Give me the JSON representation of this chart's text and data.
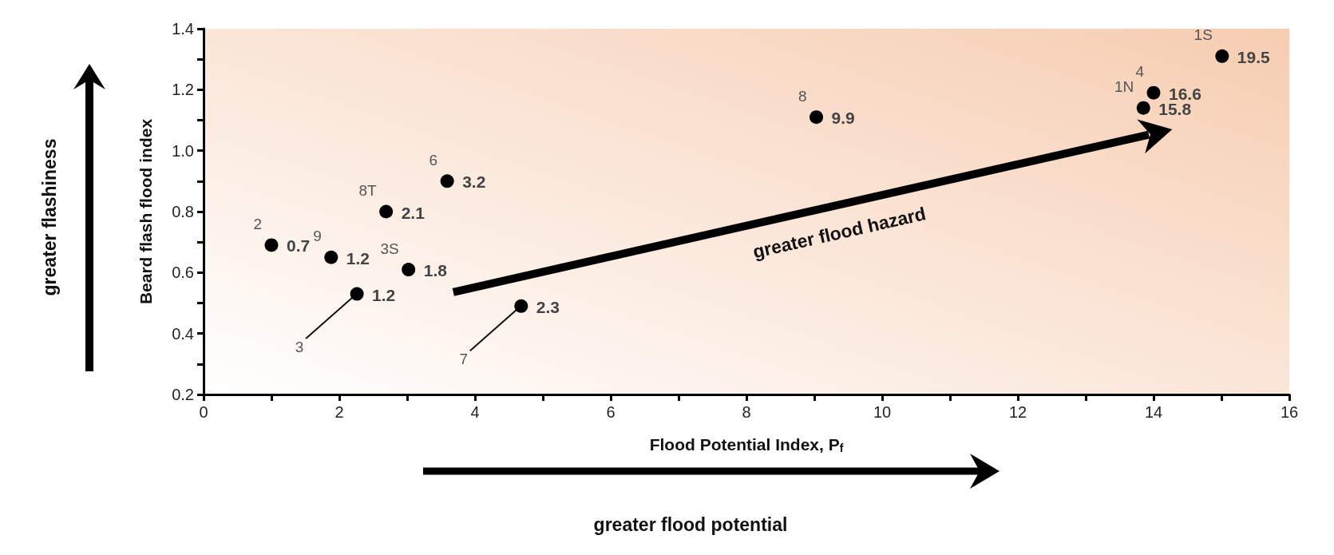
{
  "chart_data": {
    "type": "scatter",
    "xlabel": "Flood Potential Index, P$_{f}$",
    "ylabel": "Beard flash flood index",
    "x": [
      1.0,
      1.88,
      2.26,
      3.02,
      2.69,
      3.59,
      4.68,
      9.03,
      13.85,
      14.0,
      15.01
    ],
    "values": [
      0.69,
      0.65,
      0.53,
      0.61,
      0.8,
      0.9,
      0.49,
      1.11,
      1.14,
      1.19,
      1.31
    ],
    "color": "#000000",
    "marker": "circle",
    "grid": false,
    "xlim": [
      0,
      16
    ],
    "xticks": [
      0,
      {
        "value": 1,
        "label": null
      },
      2,
      {
        "value": 3,
        "label": null
      },
      4,
      {
        "value": 5,
        "label": null
      },
      6,
      {
        "value": 7,
        "label": null
      },
      8,
      {
        "value": 9,
        "label": null
      },
      10,
      {
        "value": 11,
        "label": null
      },
      12,
      {
        "value": 13,
        "label": null
      },
      14,
      {
        "value": 15,
        "label": null
      },
      16
    ],
    "ylim": [
      0.2,
      1.4
    ],
    "yticks": [
      0.2,
      {
        "value": 0.3,
        "label": null
      },
      0.4,
      {
        "value": 0.5,
        "label": null
      },
      0.6,
      {
        "value": 0.7,
        "label": null
      },
      0.8,
      {
        "value": 0.9,
        "label": null
      },
      {
        "value": 1,
        "label": "1.0"
      },
      {
        "value": 1.1,
        "label": null
      },
      1.2,
      {
        "value": 1.3,
        "label": null
      },
      1.4
    ],
    "annotations": [
      "greater flood hazard",
      "greater flashiness",
      "greater flood potential",
      {
        "text": "2",
        "x": 1.0,
        "y": 0.69
      },
      {
        "text": "9",
        "x": 1.88,
        "y": 0.65
      },
      {
        "text": "3",
        "x": 2.26,
        "y": 0.53
      },
      {
        "text": "3S",
        "x": 3.02,
        "y": 0.61
      },
      {
        "text": "8T",
        "x": 2.69,
        "y": 0.8
      },
      {
        "text": "6",
        "x": 3.59,
        "y": 0.9
      },
      {
        "text": "7",
        "x": 4.68,
        "y": 0.49
      },
      {
        "text": "8",
        "x": 9.03,
        "y": 1.11
      },
      {
        "text": "1N",
        "x": 13.85,
        "y": 1.14
      },
      {
        "text": "4",
        "x": 14.0,
        "y": 1.19
      },
      {
        "text": "1S",
        "x": 15.01,
        "y": 1.31
      },
      {
        "text": "0.7",
        "x": 1.0,
        "y": 0.69
      },
      {
        "text": "1.2",
        "x": 1.88,
        "y": 0.65
      },
      {
        "text": "1.2",
        "x": 2.26,
        "y": 0.53
      },
      {
        "text": "1.8",
        "x": 3.02,
        "y": 0.61
      },
      {
        "text": "2.1",
        "x": 2.69,
        "y": 0.8
      },
      {
        "text": "3.2",
        "x": 3.59,
        "y": 0.9
      },
      {
        "text": "2.3",
        "x": 4.68,
        "y": 0.49
      },
      {
        "text": "9.9",
        "x": 9.03,
        "y": 1.11
      },
      {
        "text": "15.8",
        "x": 13.85,
        "y": 1.14
      },
      {
        "text": "16.6",
        "x": 14.0,
        "y": 1.19
      },
      {
        "text": "19.5",
        "x": 15.01,
        "y": 1.31
      }
    ]
  }
}
